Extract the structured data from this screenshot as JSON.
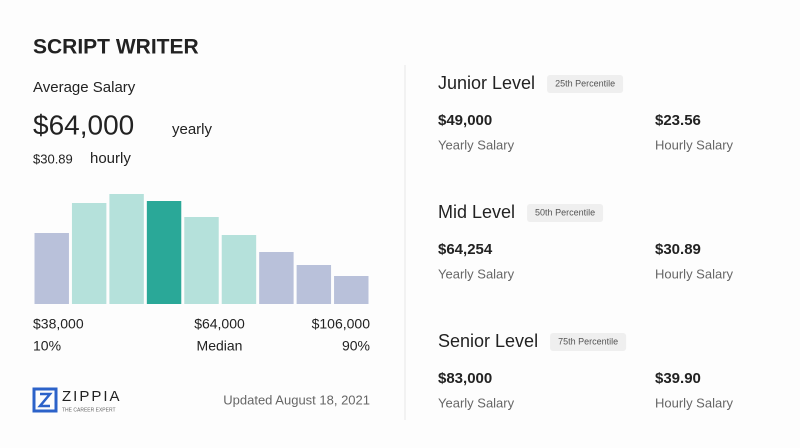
{
  "title": "SCRIPT WRITER",
  "average": {
    "label": "Average Salary",
    "yearly": "$64,000",
    "yearly_unit": "yearly",
    "hourly": "$30.89",
    "hourly_unit": "hourly"
  },
  "chart_data": {
    "type": "bar",
    "values": [
      71,
      101,
      110,
      103,
      87,
      69,
      52,
      39,
      28
    ],
    "colors": [
      "#b9c1da",
      "#b5e1db",
      "#b5e1db",
      "#2aa898",
      "#b5e1db",
      "#b5e1db",
      "#b9c1da",
      "#b9c1da",
      "#b9c1da"
    ],
    "ylim": [
      0,
      110
    ]
  },
  "scale_labels": [
    {
      "amount": "$38,000",
      "percentile": "10%"
    },
    {
      "amount": "$64,000",
      "percentile": "Median"
    },
    {
      "amount": "$106,000",
      "percentile": "90%"
    }
  ],
  "brand": {
    "name": "ZIPPIA",
    "tagline": "THE CAREER EXPERT"
  },
  "updated": "Updated August 18, 2021",
  "levels": [
    {
      "name": "Junior Level",
      "percentile": "25th Percentile",
      "yearly": "$49,000",
      "yearly_label": "Yearly Salary",
      "hourly": "$23.56",
      "hourly_label": "Hourly Salary"
    },
    {
      "name": "Mid Level",
      "percentile": "50th Percentile",
      "yearly": "$64,254",
      "yearly_label": "Yearly Salary",
      "hourly": "$30.89",
      "hourly_label": "Hourly Salary"
    },
    {
      "name": "Senior Level",
      "percentile": "75th Percentile",
      "yearly": "$83,000",
      "yearly_label": "Yearly Salary",
      "hourly": "$39.90",
      "hourly_label": "Hourly Salary"
    }
  ]
}
